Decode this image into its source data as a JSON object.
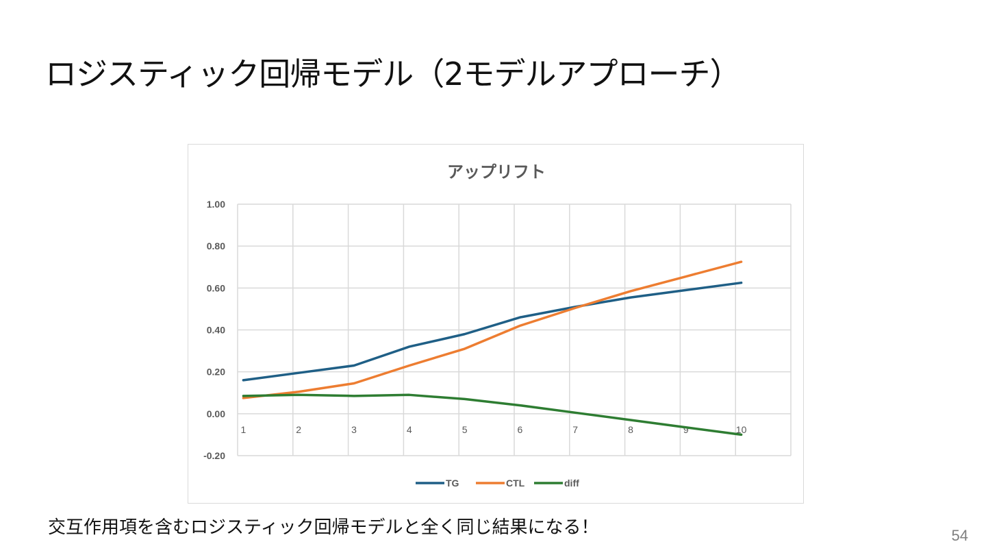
{
  "slide": {
    "title": "ロジスティック回帰モデル（2モデルアプローチ）",
    "caption": "交互作用項を含むロジスティック回帰モデルと全く同じ結果になる！",
    "page_number": "54"
  },
  "chart_data": {
    "type": "line",
    "title": "アップリフト",
    "xlabel": "",
    "ylabel": "",
    "categories": [
      "1",
      "2",
      "3",
      "4",
      "5",
      "6",
      "7",
      "8",
      "9",
      "10"
    ],
    "ylim": [
      -0.2,
      1.0
    ],
    "yticks": [
      "1.00",
      "0.80",
      "0.60",
      "0.40",
      "0.20",
      "0.00",
      "-0.20"
    ],
    "ytick_values": [
      1.0,
      0.8,
      0.6,
      0.4,
      0.2,
      0.0,
      -0.2
    ],
    "grid": true,
    "legend_position": "bottom",
    "series": [
      {
        "name": "TG",
        "color": "#1f5f86",
        "values": [
          0.16,
          0.195,
          0.23,
          0.32,
          0.38,
          0.46,
          0.51,
          0.555,
          0.59,
          0.625
        ]
      },
      {
        "name": "CTL",
        "color": "#ed7d31",
        "values": [
          0.075,
          0.105,
          0.145,
          0.23,
          0.31,
          0.42,
          0.505,
          0.585,
          0.655,
          0.725
        ]
      },
      {
        "name": "diff",
        "color": "#2e7d32",
        "values": [
          0.085,
          0.09,
          0.085,
          0.09,
          0.07,
          0.04,
          0.005,
          -0.03,
          -0.065,
          -0.1
        ]
      }
    ]
  }
}
